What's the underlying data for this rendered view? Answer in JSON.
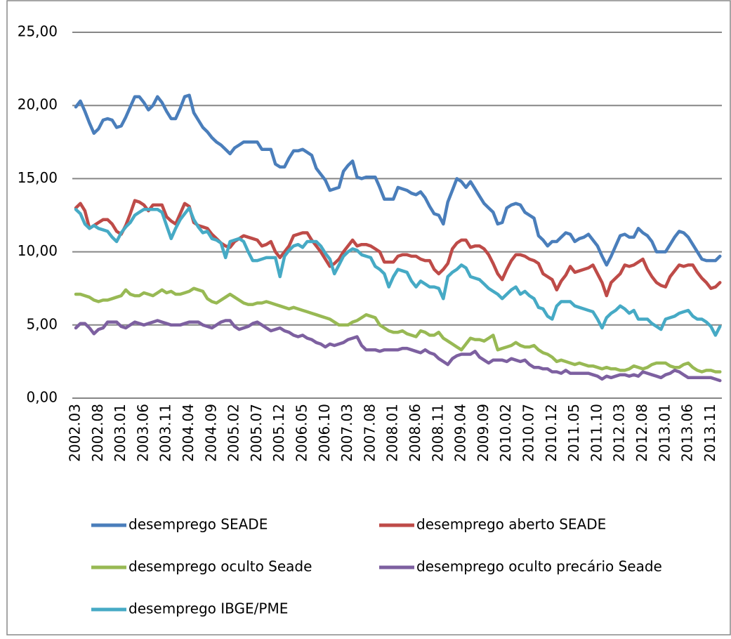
{
  "chart_data": {
    "type": "line",
    "categories": [
      "2002.03",
      null,
      null,
      null,
      null,
      "2002.08",
      null,
      null,
      null,
      null,
      "2003.01",
      null,
      null,
      null,
      null,
      "2003.06",
      null,
      null,
      null,
      null,
      "2003.11",
      null,
      null,
      null,
      null,
      "2004.04",
      null,
      null,
      null,
      null,
      "2004.09",
      null,
      null,
      null,
      null,
      "2005.02",
      null,
      null,
      null,
      null,
      "2005.07",
      null,
      null,
      null,
      null,
      "2005.12",
      null,
      null,
      null,
      null,
      "2006.05",
      null,
      null,
      null,
      null,
      "2006.10",
      null,
      null,
      null,
      null,
      "2007.03",
      null,
      null,
      null,
      null,
      "2007.08",
      null,
      null,
      null,
      null,
      "2008.01",
      null,
      null,
      null,
      null,
      "2008.06",
      null,
      null,
      null,
      null,
      "2008.11",
      null,
      null,
      null,
      null,
      "2009.04",
      null,
      null,
      null,
      null,
      "2009.09",
      null,
      null,
      null,
      null,
      "2010.02",
      null,
      null,
      null,
      null,
      "2010.07",
      null,
      null,
      null,
      null,
      "2010.12",
      null,
      null,
      null,
      null,
      "2011.05",
      null,
      null,
      null,
      null,
      "2011.10",
      null,
      null,
      null,
      null,
      "2012.03",
      null,
      null,
      null,
      null,
      "2012.08",
      null,
      null,
      null,
      null,
      "2013.01",
      null,
      null,
      null,
      null,
      "2013.06",
      null,
      null,
      null,
      null,
      "2013.11",
      null,
      null
    ],
    "series": [
      {
        "name": "desemprego SEADE",
        "color": "#4a7ebb",
        "values": [
          19.9,
          20.3,
          19.6,
          18.8,
          18.1,
          18.4,
          19.0,
          19.1,
          19.0,
          18.5,
          18.6,
          19.2,
          19.9,
          20.6,
          20.6,
          20.2,
          19.7,
          20.0,
          20.6,
          20.2,
          19.6,
          19.1,
          19.1,
          19.8,
          20.6,
          20.7,
          19.5,
          19.0,
          18.5,
          18.2,
          17.8,
          17.5,
          17.3,
          17.0,
          16.7,
          17.1,
          17.3,
          17.5,
          17.5,
          17.5,
          17.5,
          17.0,
          17.0,
          17.0,
          16.0,
          15.8,
          15.8,
          16.4,
          16.9,
          16.9,
          17.0,
          16.8,
          16.6,
          15.7,
          15.3,
          14.9,
          14.2,
          14.3,
          14.4,
          15.5,
          15.9,
          16.2,
          15.1,
          15.0,
          15.1,
          15.1,
          15.1,
          14.4,
          13.6,
          13.6,
          13.6,
          14.4,
          14.3,
          14.2,
          14.0,
          13.9,
          14.1,
          13.7,
          13.1,
          12.6,
          12.5,
          11.9,
          13.4,
          14.2,
          15.0,
          14.8,
          14.4,
          14.8,
          14.3,
          13.8,
          13.3,
          13.0,
          12.7,
          11.9,
          12.0,
          13.0,
          13.2,
          13.3,
          13.2,
          12.7,
          12.5,
          12.3,
          11.1,
          10.8,
          10.4,
          10.7,
          10.7,
          11.0,
          11.3,
          11.2,
          10.7,
          10.9,
          11.0,
          11.2,
          10.8,
          10.4,
          9.7,
          9.1,
          9.7,
          10.4,
          11.1,
          11.2,
          11.0,
          11.0,
          11.6,
          11.3,
          11.1,
          10.7,
          10.0,
          10.0,
          10.0,
          10.5,
          11.0,
          11.4,
          11.3,
          11.0,
          10.5,
          10.0,
          9.5,
          9.4,
          9.4,
          9.4,
          9.7
        ]
      },
      {
        "name": "desemprego aberto  SEADE",
        "color": "#be4b48",
        "values": [
          13.0,
          13.3,
          12.8,
          11.6,
          11.8,
          12.0,
          12.2,
          12.2,
          11.9,
          11.4,
          11.2,
          11.8,
          12.6,
          13.5,
          13.4,
          13.2,
          12.8,
          13.2,
          13.2,
          13.2,
          12.4,
          12.1,
          11.9,
          12.6,
          13.3,
          13.1,
          12.0,
          11.8,
          11.7,
          11.6,
          11.2,
          10.9,
          10.6,
          10.4,
          10.3,
          10.7,
          10.9,
          11.1,
          11.0,
          10.9,
          10.8,
          10.4,
          10.5,
          10.7,
          10.0,
          9.6,
          10.0,
          10.4,
          11.1,
          11.2,
          11.3,
          11.3,
          10.8,
          10.4,
          10.0,
          9.5,
          9.0,
          9.2,
          9.5,
          10.0,
          10.4,
          10.8,
          10.4,
          10.5,
          10.5,
          10.4,
          10.2,
          10.0,
          9.3,
          9.3,
          9.3,
          9.7,
          9.8,
          9.8,
          9.7,
          9.7,
          9.5,
          9.4,
          9.4,
          8.8,
          8.5,
          8.8,
          9.2,
          10.2,
          10.6,
          10.8,
          10.8,
          10.3,
          10.4,
          10.4,
          10.2,
          9.8,
          9.2,
          8.5,
          8.1,
          8.8,
          9.4,
          9.8,
          9.8,
          9.7,
          9.5,
          9.4,
          9.2,
          8.5,
          8.3,
          8.1,
          7.4,
          8.0,
          8.4,
          9.0,
          8.6,
          8.7,
          8.8,
          8.9,
          9.1,
          8.5,
          7.9,
          7.0,
          7.9,
          8.2,
          8.5,
          9.1,
          9.0,
          9.1,
          9.3,
          9.5,
          8.8,
          8.3,
          7.9,
          7.7,
          7.6,
          8.3,
          8.7,
          9.1,
          9.0,
          9.1,
          9.1,
          8.6,
          8.2,
          7.9,
          7.5,
          7.6,
          7.9
        ]
      },
      {
        "name": "desemprego oculto Seade",
        "color": "#98b954",
        "values": [
          7.1,
          7.1,
          7.0,
          6.9,
          6.7,
          6.6,
          6.7,
          6.7,
          6.8,
          6.9,
          7.0,
          7.4,
          7.1,
          7.0,
          7.0,
          7.2,
          7.1,
          7.0,
          7.2,
          7.4,
          7.2,
          7.3,
          7.1,
          7.1,
          7.2,
          7.3,
          7.5,
          7.4,
          7.3,
          6.8,
          6.6,
          6.5,
          6.7,
          6.9,
          7.1,
          6.9,
          6.7,
          6.5,
          6.4,
          6.4,
          6.5,
          6.5,
          6.6,
          6.5,
          6.4,
          6.3,
          6.2,
          6.1,
          6.2,
          6.1,
          6.0,
          5.9,
          5.8,
          5.7,
          5.6,
          5.5,
          5.4,
          5.2,
          5.0,
          5.0,
          5.0,
          5.2,
          5.3,
          5.5,
          5.7,
          5.6,
          5.5,
          5.0,
          4.8,
          4.6,
          4.5,
          4.5,
          4.6,
          4.4,
          4.3,
          4.2,
          4.6,
          4.5,
          4.3,
          4.3,
          4.5,
          4.1,
          3.9,
          3.7,
          3.5,
          3.3,
          3.7,
          4.1,
          4.0,
          4.0,
          3.9,
          4.1,
          4.3,
          3.3,
          3.4,
          3.5,
          3.6,
          3.8,
          3.6,
          3.5,
          3.5,
          3.6,
          3.3,
          3.1,
          3.0,
          2.8,
          2.5,
          2.6,
          2.5,
          2.4,
          2.3,
          2.4,
          2.3,
          2.2,
          2.2,
          2.1,
          2.0,
          2.1,
          2.0,
          2.0,
          1.9,
          1.9,
          2.0,
          2.2,
          2.1,
          2.0,
          2.1,
          2.3,
          2.4,
          2.4,
          2.4,
          2.2,
          2.1,
          2.1,
          2.3,
          2.4,
          2.1,
          1.9,
          1.8,
          1.9,
          1.9,
          1.8,
          1.8
        ]
      },
      {
        "name": "desemprego oculto precário Seade",
        "color": "#7d60a0",
        "values": [
          4.8,
          5.1,
          5.1,
          4.8,
          4.4,
          4.7,
          4.8,
          5.2,
          5.2,
          5.2,
          4.9,
          4.8,
          5.0,
          5.2,
          5.1,
          5.0,
          5.1,
          5.2,
          5.3,
          5.2,
          5.1,
          5.0,
          5.0,
          5.0,
          5.1,
          5.2,
          5.2,
          5.2,
          5.0,
          4.9,
          4.8,
          5.0,
          5.2,
          5.3,
          5.3,
          4.9,
          4.7,
          4.8,
          4.9,
          5.1,
          5.2,
          5.0,
          4.8,
          4.6,
          4.7,
          4.8,
          4.6,
          4.5,
          4.3,
          4.2,
          4.3,
          4.1,
          4.0,
          3.8,
          3.7,
          3.5,
          3.7,
          3.6,
          3.7,
          3.8,
          4.0,
          4.1,
          4.2,
          3.6,
          3.3,
          3.3,
          3.3,
          3.2,
          3.3,
          3.3,
          3.3,
          3.3,
          3.4,
          3.4,
          3.3,
          3.2,
          3.1,
          3.3,
          3.1,
          3.0,
          2.7,
          2.5,
          2.3,
          2.7,
          2.9,
          3.0,
          3.0,
          3.0,
          3.2,
          2.8,
          2.6,
          2.4,
          2.6,
          2.6,
          2.6,
          2.5,
          2.7,
          2.6,
          2.5,
          2.6,
          2.3,
          2.1,
          2.1,
          2.0,
          2.0,
          1.8,
          1.8,
          1.7,
          1.9,
          1.7,
          1.7,
          1.7,
          1.7,
          1.7,
          1.6,
          1.5,
          1.3,
          1.5,
          1.4,
          1.5,
          1.6,
          1.6,
          1.5,
          1.6,
          1.5,
          1.8,
          1.7,
          1.6,
          1.5,
          1.4,
          1.6,
          1.7,
          1.9,
          1.8,
          1.6,
          1.4,
          1.4,
          1.4,
          1.4,
          1.4,
          1.4,
          1.3,
          1.2
        ]
      },
      {
        "name": "desemprego IBGE/PME",
        "color": "#46aac5",
        "values": [
          12.9,
          12.6,
          11.9,
          11.6,
          11.8,
          11.6,
          11.5,
          11.4,
          11.0,
          10.7,
          11.3,
          11.7,
          12.0,
          12.5,
          12.7,
          12.9,
          12.9,
          12.9,
          12.9,
          12.7,
          11.8,
          10.9,
          11.6,
          12.2,
          12.6,
          13.0,
          12.2,
          11.7,
          11.3,
          11.4,
          10.9,
          10.8,
          10.6,
          9.6,
          10.7,
          10.8,
          10.9,
          10.7,
          10.0,
          9.4,
          9.4,
          9.5,
          9.6,
          9.6,
          9.6,
          8.3,
          9.7,
          10.1,
          10.4,
          10.5,
          10.3,
          10.7,
          10.7,
          10.7,
          10.4,
          9.9,
          9.5,
          8.5,
          9.1,
          9.7,
          10.0,
          10.2,
          10.1,
          9.8,
          9.7,
          9.6,
          9.0,
          8.8,
          8.5,
          7.6,
          8.3,
          8.8,
          8.7,
          8.6,
          8.0,
          7.6,
          8.0,
          7.8,
          7.6,
          7.6,
          7.5,
          6.8,
          8.3,
          8.6,
          8.8,
          9.1,
          8.9,
          8.3,
          8.2,
          8.1,
          7.8,
          7.5,
          7.3,
          7.1,
          6.8,
          7.1,
          7.4,
          7.6,
          7.1,
          7.3,
          7.0,
          6.8,
          6.2,
          6.1,
          5.6,
          5.4,
          6.3,
          6.6,
          6.6,
          6.6,
          6.3,
          6.2,
          6.1,
          6.0,
          5.9,
          5.4,
          4.8,
          5.5,
          5.8,
          6.0,
          6.3,
          6.1,
          5.8,
          6.0,
          5.4,
          5.4,
          5.4,
          5.1,
          4.9,
          4.7,
          5.4,
          5.5,
          5.6,
          5.8,
          5.9,
          6.0,
          5.6,
          5.4,
          5.4,
          5.2,
          4.9,
          4.3,
          4.9
        ]
      }
    ],
    "ylim": [
      0,
      25
    ],
    "yticks": [
      {
        "value": 0,
        "label": "0,00"
      },
      {
        "value": 5,
        "label": "5,00"
      },
      {
        "value": 10,
        "label": "10,00"
      },
      {
        "value": 15,
        "label": "15,00"
      },
      {
        "value": 20,
        "label": "20,00"
      },
      {
        "value": 25,
        "label": "25,00"
      }
    ],
    "grid": true
  }
}
